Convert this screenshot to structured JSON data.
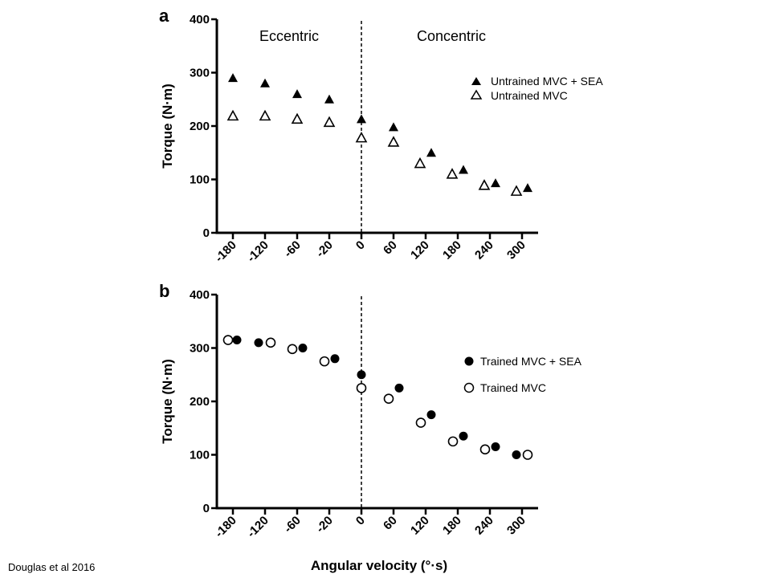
{
  "citation": "Douglas et al 2016",
  "chart_data": [
    {
      "type": "scatter",
      "panel": "a",
      "title": "",
      "xlabel": "",
      "ylabel": "Torque (N·m)",
      "ylim": [
        0,
        400
      ],
      "yticks": [
        "0",
        "100",
        "200",
        "300",
        "400"
      ],
      "categories": [
        "-180",
        "-120",
        "-60",
        "-20",
        "0",
        "60",
        "120",
        "180",
        "240",
        "300"
      ],
      "region_labels": [
        "Eccentric",
        "Concentric"
      ],
      "divider_at": "0",
      "legend_position": "top-right",
      "series": [
        {
          "name": "Untrained MVC + SEA",
          "marker": "filled-triangle",
          "values": [
            290,
            280,
            260,
            250,
            213,
            198,
            150,
            118,
            93,
            84
          ]
        },
        {
          "name": "Untrained MVC",
          "marker": "open-triangle",
          "values": [
            219,
            219,
            213,
            207,
            178,
            170,
            130,
            110,
            89,
            78
          ]
        }
      ]
    },
    {
      "type": "scatter",
      "panel": "b",
      "title": "",
      "xlabel": "Angular velocity (°·s)",
      "ylabel": "Torque (N·m)",
      "ylim": [
        0,
        400
      ],
      "yticks": [
        "0",
        "100",
        "200",
        "300",
        "400"
      ],
      "categories": [
        "-180",
        "-120",
        "-60",
        "-20",
        "0",
        "60",
        "120",
        "180",
        "240",
        "300"
      ],
      "divider_at": "0",
      "legend_position": "top-right",
      "series": [
        {
          "name": "Trained MVC + SEA",
          "marker": "filled-circle",
          "values": [
            315,
            310,
            300,
            280,
            250,
            225,
            175,
            135,
            115,
            100
          ]
        },
        {
          "name": "Trained MVC",
          "marker": "open-circle",
          "values": [
            315,
            310,
            298,
            275,
            225,
            205,
            160,
            125,
            110,
            100
          ]
        }
      ]
    }
  ]
}
